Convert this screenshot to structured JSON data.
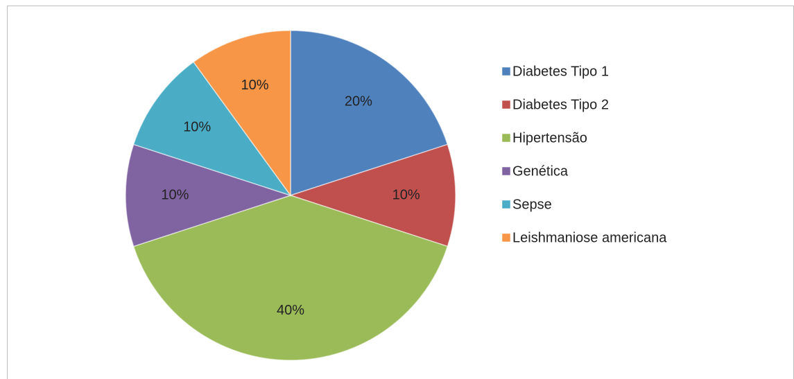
{
  "chart_data": {
    "type": "pie",
    "categories": [
      "Diabetes Tipo 1",
      "Diabetes Tipo 2",
      "Hipertensão",
      "Genética",
      "Sepse",
      "Leishmaniose americana"
    ],
    "values": [
      20,
      10,
      40,
      10,
      10,
      10
    ],
    "value_labels": [
      "20%",
      "10%",
      "40%",
      "10%",
      "10%",
      "10%"
    ],
    "colors": [
      "#4f81bd",
      "#c0504d",
      "#9bbb59",
      "#8064a2",
      "#4bacc6",
      "#f79646"
    ],
    "legend": "right"
  }
}
